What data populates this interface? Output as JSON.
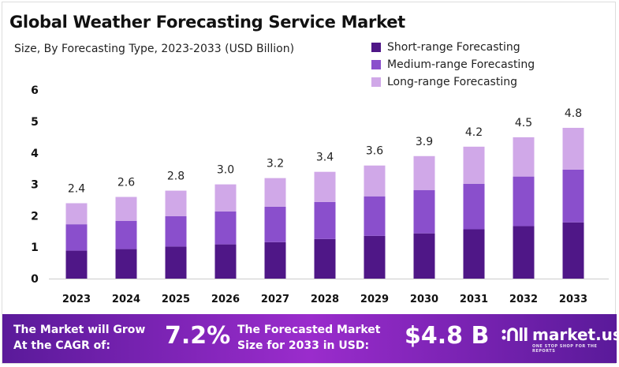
{
  "chart_data": {
    "type": "bar",
    "stacked": true,
    "title": "Global Weather Forecasting Service Market",
    "subtitle": "Size, By Forecasting Type, 2023-2033  (USD Billion)",
    "categories": [
      "2023",
      "2024",
      "2025",
      "2026",
      "2027",
      "2028",
      "2029",
      "2030",
      "2031",
      "2032",
      "2033"
    ],
    "series": [
      {
        "name": "Short-range Forecasting",
        "color": "#4f1787",
        "values": [
          0.89,
          0.94,
          1.02,
          1.09,
          1.16,
          1.26,
          1.36,
          1.44,
          1.57,
          1.67,
          1.79
        ]
      },
      {
        "name": "Medium-range Forecasting",
        "color": "#8a4fcc",
        "values": [
          0.84,
          0.9,
          0.97,
          1.05,
          1.13,
          1.18,
          1.26,
          1.38,
          1.45,
          1.58,
          1.68
        ]
      },
      {
        "name": "Long-range Forecasting",
        "color": "#d0a8e8",
        "values": [
          0.67,
          0.76,
          0.81,
          0.86,
          0.91,
          0.96,
          0.98,
          1.08,
          1.18,
          1.25,
          1.33
        ]
      }
    ],
    "totals": [
      "2.4",
      "2.6",
      "2.8",
      "3.0",
      "3.2",
      "3.4",
      "3.6",
      "3.9",
      "4.2",
      "4.5",
      "4.8"
    ],
    "ylim": [
      0,
      6
    ],
    "yticks": [
      "0",
      "1",
      "2",
      "3",
      "4",
      "5",
      "6"
    ],
    "grid": false,
    "legend": "top-right"
  },
  "footer": {
    "cagr_label_1": "The Market will Grow",
    "cagr_label_2": "At the CAGR of:",
    "cagr_value": "7.2%",
    "forecast_label_1": "The Forecasted Market",
    "forecast_label_2": "Size for 2033 in USD:",
    "forecast_value": "$4.8 B",
    "logo_text": "market.us",
    "logo_tagline": "ONE STOP SHOP FOR THE REPORTS"
  }
}
